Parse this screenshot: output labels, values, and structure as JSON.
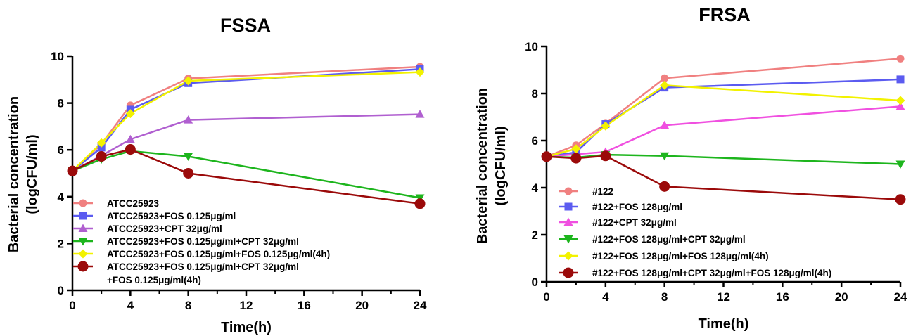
{
  "chart_data": [
    {
      "type": "line",
      "title": "FSSA",
      "xlabel": "Time(h)",
      "ylabel_lines": [
        "Bacterial concentration",
        "(logCFU/ml)"
      ],
      "xlim": [
        0,
        24
      ],
      "ylim": [
        0,
        10
      ],
      "xticks": [
        0,
        4,
        8,
        12,
        16,
        20,
        24
      ],
      "yticks": [
        0,
        2,
        4,
        6,
        8,
        10
      ],
      "grid": false,
      "legend_position": "bottom-center",
      "series": [
        {
          "label_lines": [
            "ATCC25923"
          ],
          "color": "#F08080",
          "marker": "circle",
          "x": [
            0,
            2,
            4,
            8,
            24
          ],
          "y": [
            5.1,
            6.25,
            7.9,
            9.05,
            9.55
          ]
        },
        {
          "label_lines": [
            "ATCC25923+FOS 0.125μg/ml"
          ],
          "color": "#5B5BF0",
          "marker": "square",
          "x": [
            0,
            2,
            4,
            8,
            24
          ],
          "y": [
            5.1,
            6.1,
            7.72,
            8.85,
            9.45
          ]
        },
        {
          "label_lines": [
            "ATCC25923+CPT 32μg/ml"
          ],
          "color": "#B05FD0",
          "marker": "triangle-up",
          "x": [
            0,
            2,
            4,
            8,
            24
          ],
          "y": [
            5.1,
            5.75,
            6.45,
            7.28,
            7.52
          ]
        },
        {
          "label_lines": [
            "ATCC25923+FOS 0.125μg/ml+CPT 32μg/ml"
          ],
          "color": "#1DB51D",
          "marker": "triangle-down",
          "x": [
            0,
            2,
            4,
            8,
            24
          ],
          "y": [
            5.1,
            5.6,
            5.95,
            5.72,
            3.95
          ]
        },
        {
          "label_lines": [
            "ATCC25923+FOS 0.125μg/ml+FOS 0.125μg/ml(4h)"
          ],
          "color": "#F2F200",
          "marker": "diamond",
          "x": [
            0,
            2,
            4,
            8,
            24
          ],
          "y": [
            5.1,
            6.3,
            7.55,
            8.95,
            9.32
          ]
        },
        {
          "label_lines": [
            "ATCC25923+FOS 0.125μg/ml+CPT 32μg/ml",
            "+FOS 0.125μg/ml(4h)"
          ],
          "color": "#9B0A0A",
          "marker": "big-circle",
          "x": [
            0,
            2,
            4,
            8,
            24
          ],
          "y": [
            5.1,
            5.72,
            6.02,
            5.0,
            3.7
          ]
        }
      ]
    },
    {
      "type": "line",
      "title": "FRSA",
      "xlabel": "Time(h)",
      "ylabel_lines": [
        "Bacterial concentration",
        "(logCFU/ml)"
      ],
      "xlim": [
        0,
        24
      ],
      "ylim": [
        0,
        10
      ],
      "xticks": [
        0,
        4,
        8,
        12,
        16,
        20,
        24
      ],
      "yticks": [
        0,
        2,
        4,
        6,
        8,
        10
      ],
      "grid": false,
      "legend_position": "bottom-center",
      "series": [
        {
          "label_lines": [
            "#122"
          ],
          "color": "#F08080",
          "marker": "circle",
          "x": [
            0,
            2,
            4,
            8,
            24
          ],
          "y": [
            5.32,
            5.8,
            6.72,
            8.65,
            9.48
          ]
        },
        {
          "label_lines": [
            "#122+FOS 128μg/ml"
          ],
          "color": "#5B5BF0",
          "marker": "square",
          "x": [
            0,
            2,
            4,
            8,
            24
          ],
          "y": [
            5.32,
            5.5,
            6.7,
            8.25,
            8.6
          ]
        },
        {
          "label_lines": [
            "#122+CPT 32μg/ml"
          ],
          "color": "#F050E0",
          "marker": "triangle-up",
          "x": [
            0,
            2,
            4,
            8,
            24
          ],
          "y": [
            5.32,
            5.42,
            5.52,
            6.65,
            7.45
          ]
        },
        {
          "label_lines": [
            "#122+FOS 128μg/ml+CPT 32μg/ml"
          ],
          "color": "#1DB51D",
          "marker": "triangle-down",
          "x": [
            0,
            2,
            4,
            8,
            24
          ],
          "y": [
            5.32,
            5.28,
            5.4,
            5.35,
            5.0
          ]
        },
        {
          "label_lines": [
            "#122+FOS 128μg/ml+FOS 128μg/ml(4h)"
          ],
          "color": "#F2F200",
          "marker": "diamond",
          "x": [
            0,
            2,
            4,
            8,
            24
          ],
          "y": [
            5.32,
            5.65,
            6.62,
            8.35,
            7.7
          ]
        },
        {
          "label_lines": [
            "#122+FOS 128μg/ml+CPT 32μg/ml+FOS 128μg/ml(4h)"
          ],
          "color": "#9B0A0A",
          "marker": "big-circle",
          "x": [
            0,
            2,
            4,
            8,
            24
          ],
          "y": [
            5.32,
            5.25,
            5.35,
            4.05,
            3.5
          ]
        }
      ]
    }
  ]
}
